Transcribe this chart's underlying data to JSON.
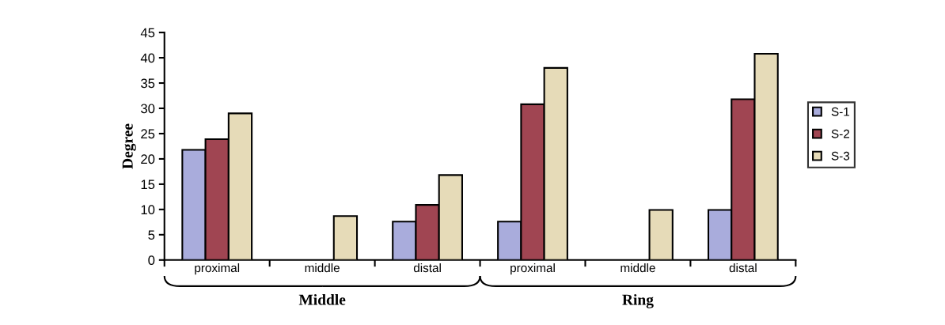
{
  "chart_data": {
    "type": "bar",
    "categories": [
      "proximal",
      "middle",
      "distal",
      "proximal",
      "middle",
      "distal"
    ],
    "series": [
      {
        "name": "S-1",
        "color": "#a9acdc",
        "values": [
          21.8,
          null,
          7.6,
          7.6,
          null,
          9.9
        ]
      },
      {
        "name": "S-2",
        "color": "#a04552",
        "values": [
          23.9,
          null,
          10.9,
          30.8,
          null,
          31.8
        ]
      },
      {
        "name": "S-3",
        "color": "#e6dbb8",
        "values": [
          29,
          8.7,
          16.8,
          38,
          9.9,
          40.8
        ]
      }
    ],
    "ylabel": "Degree",
    "ylim": [
      0,
      45
    ],
    "yticks": [
      0,
      5,
      10,
      15,
      20,
      25,
      30,
      35,
      40,
      45
    ],
    "annotations": [
      "Middle",
      "Ring"
    ],
    "legend": "right",
    "grid": false
  }
}
